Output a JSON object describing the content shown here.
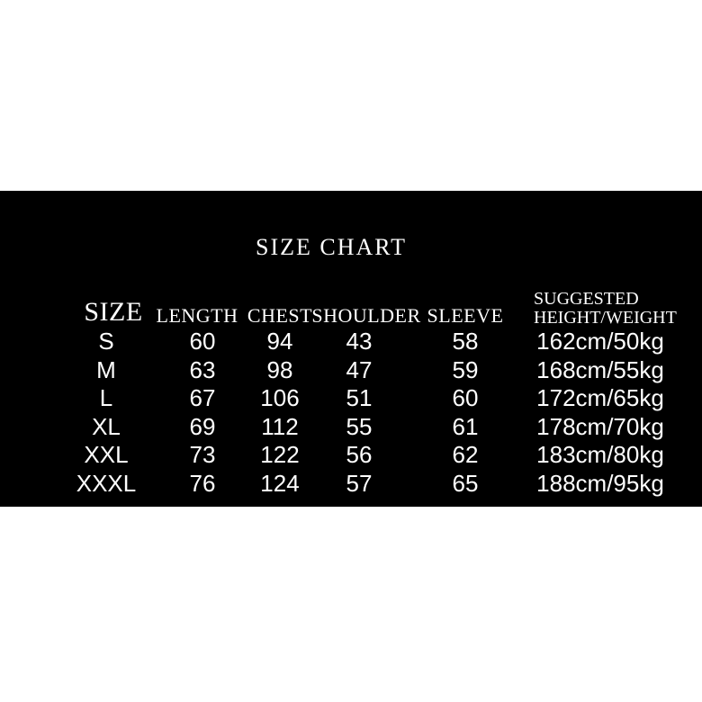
{
  "colors": {
    "page_background": "#ffffff",
    "band_background": "#000000",
    "text": "#ffffff"
  },
  "chart_data": {
    "type": "table",
    "title": "SIZE CHART",
    "columns": [
      "SIZE",
      "LENGTH",
      "CHEST",
      "SHOULDER",
      "SLEEVE",
      "SUGGESTED HEIGHT/WEIGHT"
    ],
    "suggested_header_lines": [
      "SUGGESTED",
      "HEIGHT/WEIGHT"
    ],
    "rows": [
      [
        "S",
        "60",
        "94",
        "43",
        "58",
        "162cm/50kg"
      ],
      [
        "M",
        "63",
        "98",
        "47",
        "59",
        "168cm/55kg"
      ],
      [
        "L",
        "67",
        "106",
        "51",
        "60",
        "172cm/65kg"
      ],
      [
        "XL",
        "69",
        "112",
        "55",
        "61",
        "178cm/70kg"
      ],
      [
        "XXL",
        "73",
        "122",
        "56",
        "62",
        "183cm/80kg"
      ],
      [
        "XXXL",
        "76",
        "124",
        "57",
        "65",
        "188cm/95kg"
      ]
    ]
  }
}
